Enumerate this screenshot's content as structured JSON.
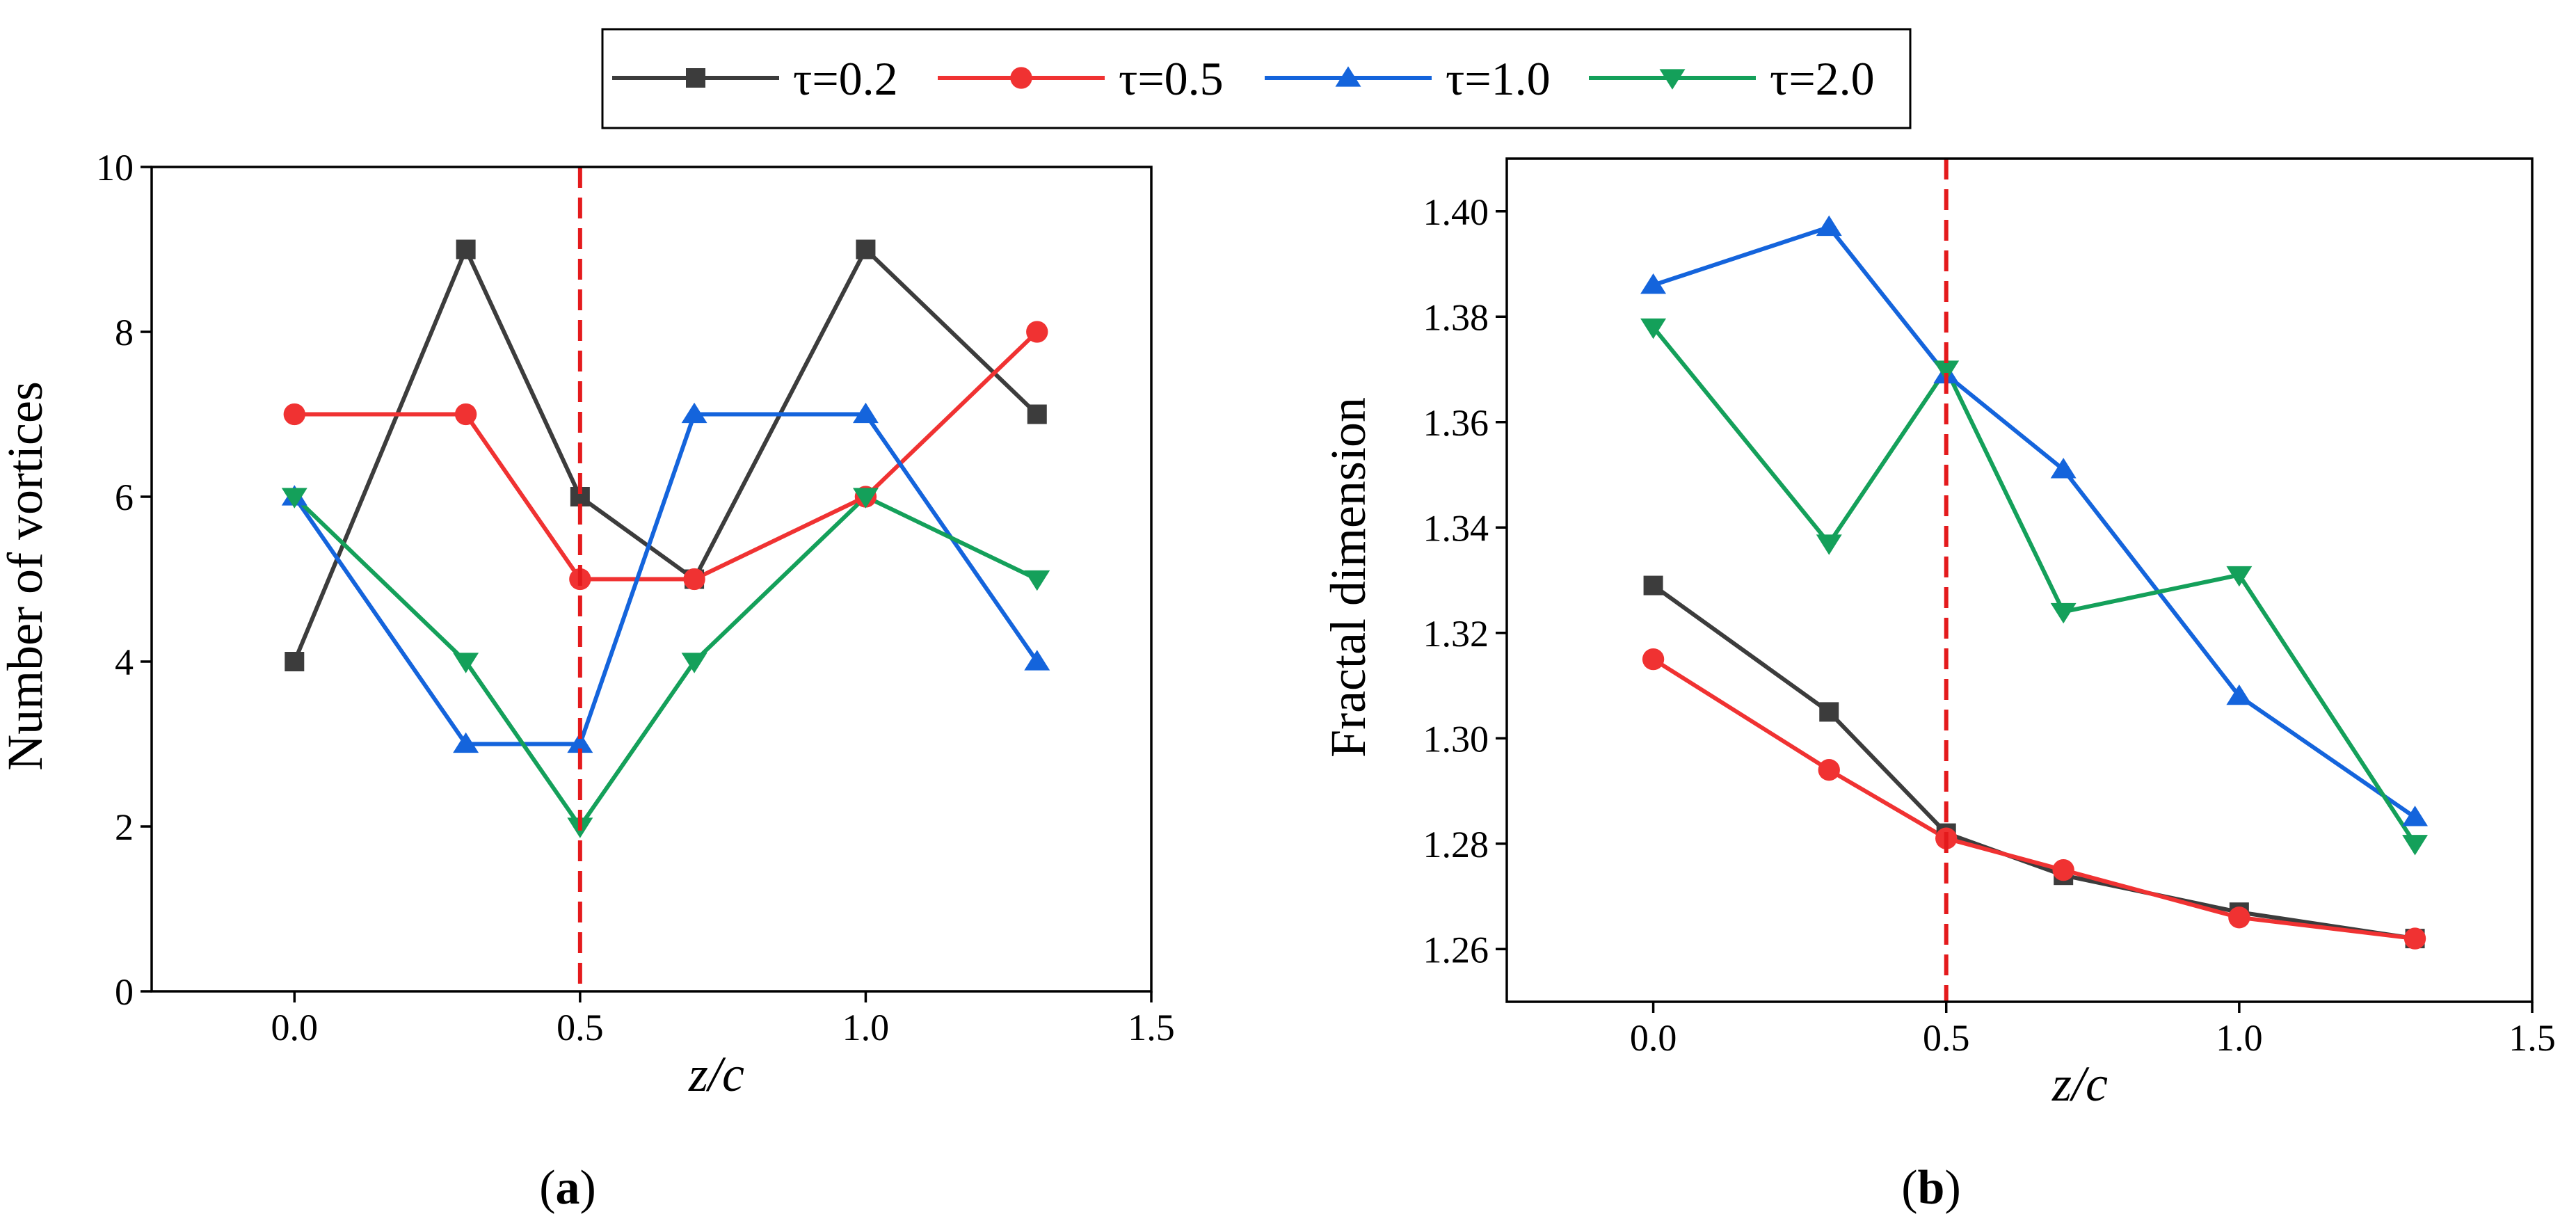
{
  "chart_data": [
    {
      "type": "line",
      "panel": "a",
      "caption_open": "(",
      "caption": "a",
      "caption_close": ")",
      "title": "",
      "xlabel": "z/c",
      "ylabel": "Number of vortices",
      "xlim": [
        -0.25,
        1.5
      ],
      "ylim": [
        0,
        10
      ],
      "xticks": [
        0.0,
        0.5,
        1.0,
        1.5
      ],
      "xtick_labels": [
        "0.0",
        "0.5",
        "1.0",
        "1.5"
      ],
      "yticks": [
        0,
        2,
        4,
        6,
        8,
        10
      ],
      "ytick_labels": [
        "0",
        "2",
        "4",
        "6",
        "8",
        "10"
      ],
      "reference_line_x": 0.5,
      "x": [
        0.0,
        0.3,
        0.5,
        0.7,
        1.0,
        1.3
      ],
      "series": [
        {
          "name": "τ=0.2",
          "values": [
            4,
            9,
            6,
            5,
            9,
            7
          ]
        },
        {
          "name": "τ=0.5",
          "values": [
            7,
            7,
            5,
            5,
            6,
            8
          ]
        },
        {
          "name": "τ=1.0",
          "values": [
            6,
            3,
            3,
            7,
            7,
            4
          ]
        },
        {
          "name": "τ=2.0",
          "values": [
            6,
            4,
            2,
            4,
            6,
            5
          ]
        }
      ]
    },
    {
      "type": "line",
      "panel": "b",
      "caption_open": "(",
      "caption": "b",
      "caption_close": ")",
      "title": "",
      "xlabel": "z/c",
      "ylabel": "Fractal dimension",
      "xlim": [
        -0.25,
        1.5
      ],
      "ylim": [
        1.25,
        1.41
      ],
      "xticks": [
        0.0,
        0.5,
        1.0,
        1.5
      ],
      "xtick_labels": [
        "0.0",
        "0.5",
        "1.0",
        "1.5"
      ],
      "yticks": [
        1.26,
        1.28,
        1.3,
        1.32,
        1.34,
        1.36,
        1.38,
        1.4
      ],
      "ytick_labels": [
        "1.26",
        "1.28",
        "1.30",
        "1.32",
        "1.34",
        "1.36",
        "1.38",
        "1.40"
      ],
      "reference_line_x": 0.5,
      "x": [
        0.0,
        0.3,
        0.5,
        0.7,
        1.0,
        1.3
      ],
      "series": [
        {
          "name": "τ=0.2",
          "values": [
            1.329,
            1.305,
            1.282,
            1.274,
            1.267,
            1.262
          ]
        },
        {
          "name": "τ=0.5",
          "values": [
            1.315,
            1.294,
            1.281,
            1.275,
            1.266,
            1.262
          ]
        },
        {
          "name": "τ=1.0",
          "values": [
            1.386,
            1.397,
            1.369,
            1.351,
            1.308,
            1.285
          ]
        },
        {
          "name": "τ=2.0",
          "values": [
            1.378,
            1.337,
            1.37,
            1.324,
            1.331,
            1.28
          ]
        }
      ]
    }
  ],
  "legend": {
    "placement": "top-center",
    "entries": [
      {
        "label": "τ=0.2",
        "color": "#3c3c3c",
        "marker": "square"
      },
      {
        "label": "τ=0.5",
        "color": "#f03232",
        "marker": "circle"
      },
      {
        "label": "τ=1.0",
        "color": "#1464dc",
        "marker": "triangle-up"
      },
      {
        "label": "τ=2.0",
        "color": "#14a05a",
        "marker": "triangle-down"
      }
    ]
  },
  "styles": {
    "series_colors": [
      "#3c3c3c",
      "#f03232",
      "#1464dc",
      "#14a05a"
    ],
    "series_markers": [
      "square",
      "circle",
      "triangle-up",
      "triangle-down"
    ],
    "reference_line_color": "#e41a1c",
    "axis_color": "#000000",
    "legend_border_color": "#000000"
  }
}
